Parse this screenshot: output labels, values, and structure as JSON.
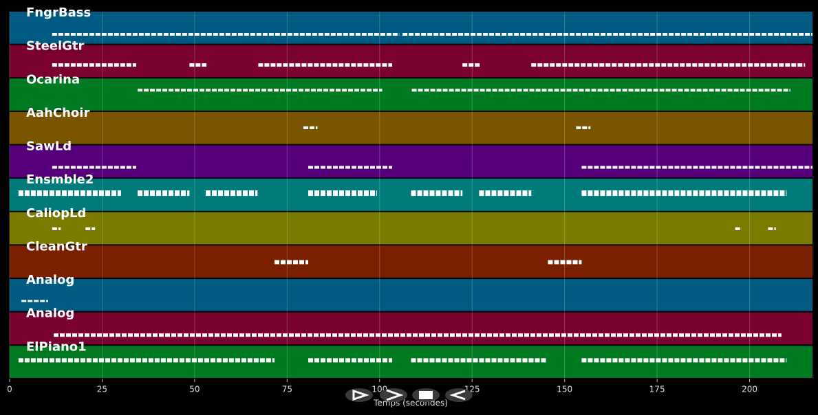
{
  "chart_data": {
    "type": "pianoroll",
    "x_label": "Temps (secondes)",
    "xlim": [
      0,
      217
    ],
    "xticks": [
      0,
      25,
      50,
      75,
      100,
      125,
      150,
      175,
      200
    ],
    "grid": true,
    "tracks": [
      {
        "name": "FngrBass",
        "color": "#005a82",
        "segments": [
          [
            11.5,
            105.3
          ],
          [
            106.2,
            217
          ]
        ]
      },
      {
        "name": "SteelGtr",
        "color": "#7a0030",
        "segments": [
          [
            11.5,
            34.2
          ],
          [
            48.6,
            53.2
          ],
          [
            67.2,
            103.4
          ],
          [
            122.4,
            127.1
          ],
          [
            141,
            215
          ]
        ]
      },
      {
        "name": "Ocarina",
        "color": "#007a20",
        "segments": [
          [
            34.6,
            100.7
          ],
          [
            108.7,
            211
          ]
        ]
      },
      {
        "name": "AahChoir",
        "color": "#7a5500",
        "segments": [
          [
            79.4,
            83.2
          ],
          [
            153.1,
            157
          ]
        ]
      },
      {
        "name": "SawLd",
        "color": "#55007a",
        "segments": [
          [
            11.5,
            34.2
          ],
          [
            80.7,
            103.4
          ],
          [
            154.6,
            217
          ]
        ]
      },
      {
        "name": "Ensmble2",
        "color": "#007a7a",
        "segments": [
          [
            2.4,
            30.1
          ],
          [
            34.6,
            48.6
          ],
          [
            53,
            67
          ],
          [
            80.7,
            99.3
          ],
          [
            108.5,
            122.4
          ],
          [
            126.9,
            141
          ],
          [
            154.6,
            210
          ]
        ]
      },
      {
        "name": "CaliopLd",
        "color": "#7a7a00",
        "segments": [
          [
            11.5,
            13.8
          ],
          [
            20.5,
            23.1
          ],
          [
            196.1,
            197.8
          ],
          [
            205,
            207.1
          ]
        ]
      },
      {
        "name": "CleanGtr",
        "color": "#7a2000",
        "segments": [
          [
            71.6,
            80.7
          ],
          [
            145.5,
            154.6
          ]
        ]
      },
      {
        "name": "Analog",
        "color": "#005a82",
        "segments": [
          [
            3.2,
            10.4
          ]
        ]
      },
      {
        "name": "Analog",
        "color": "#7a0030",
        "segments": [
          [
            11.9,
            208.6
          ]
        ]
      },
      {
        "name": "ElPiano1",
        "color": "#007a20",
        "segments": [
          [
            2.4,
            71.6
          ],
          [
            80.7,
            103.4
          ],
          [
            108.5,
            145.3
          ],
          [
            154.6,
            210
          ]
        ]
      }
    ]
  }
}
